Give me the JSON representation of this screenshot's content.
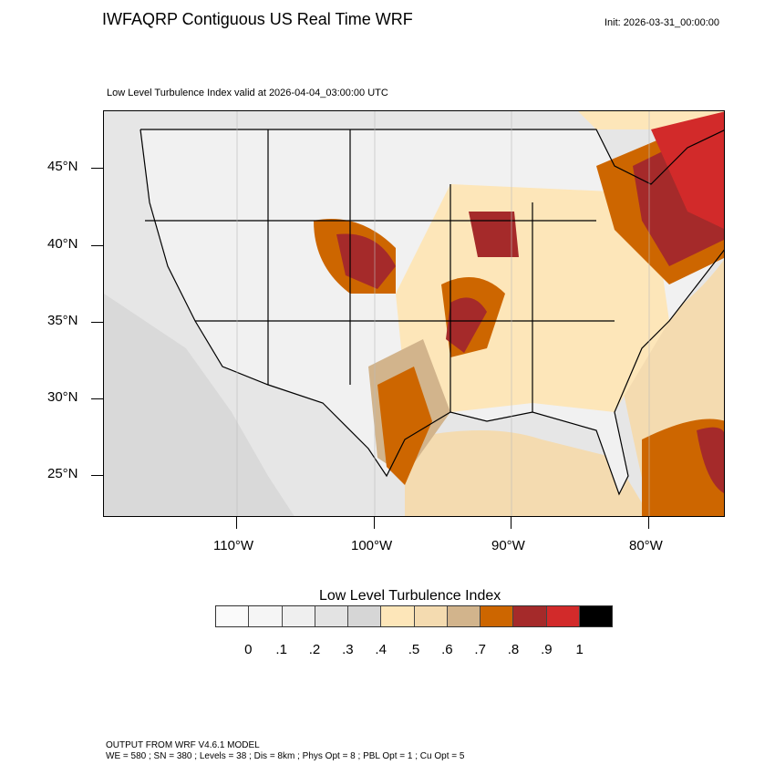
{
  "title": "IWFAQRP Contiguous US Real Time WRF",
  "init": "Init: 2026-03-31_00:00:00",
  "subtitle": "Low Level Turbulence Index valid at 2026-04-04_03:00:00 UTC",
  "lat_labels": [
    "45°N",
    "40°N",
    "35°N",
    "30°N",
    "25°N"
  ],
  "lon_labels": [
    "110°W",
    "100°W",
    "90°W",
    "80°W"
  ],
  "colorbar": {
    "title": "Low Level Turbulence Index",
    "colors": [
      "#fafafa",
      "#f5f5f5",
      "#efefef",
      "#e3e3e3",
      "#d6d6d6",
      "#fde6b9",
      "#f4dbb0",
      "#d2b48c",
      "#cd6600",
      "#a52a2a",
      "#d22a2a",
      "#000000"
    ],
    "labels": [
      "0",
      ".1",
      ".2",
      ".3",
      ".4",
      ".5",
      ".6",
      ".7",
      ".8",
      ".9",
      "1"
    ]
  },
  "footer": {
    "line1": "OUTPUT FROM WRF V4.6.1 MODEL",
    "line2": "WE = 580 ; SN = 380 ; Levels = 38 ; Dis = 8km ; Phys Opt = 8 ; PBL Opt = 1 ; Cu Opt = 5"
  }
}
